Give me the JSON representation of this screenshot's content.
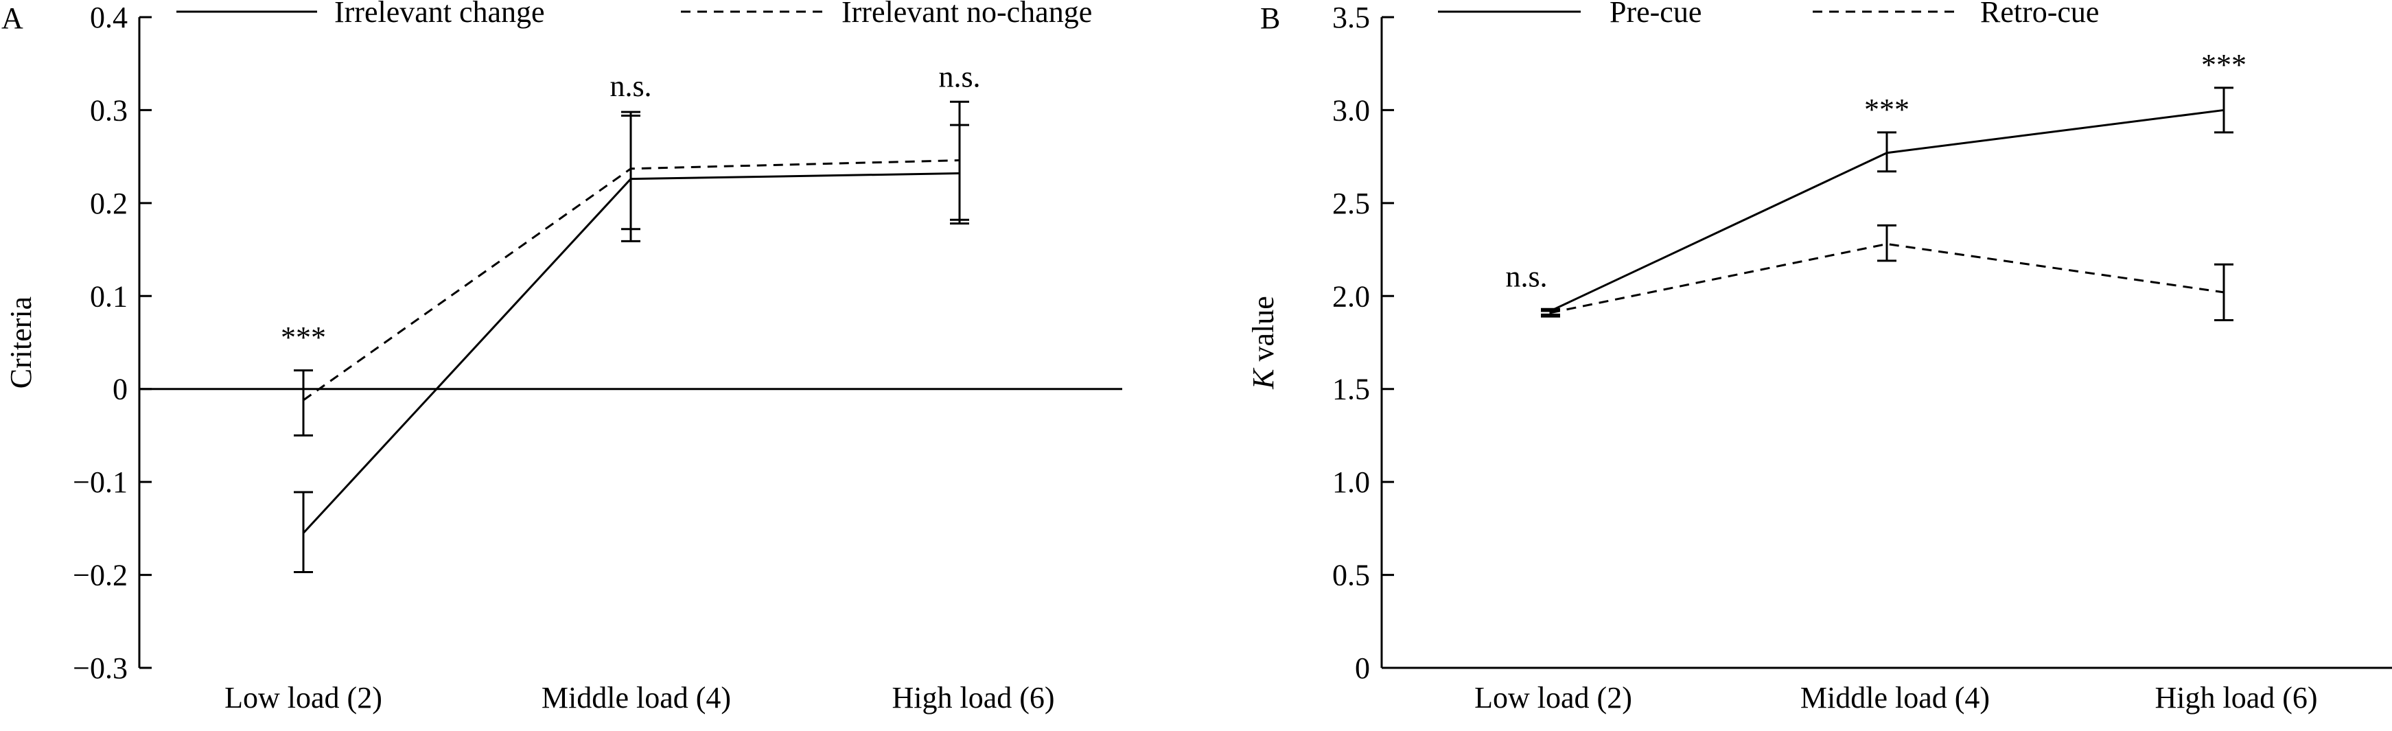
{
  "chart_data": [
    {
      "type": "line",
      "panel_label": "A",
      "title": "",
      "xlabel": "",
      "ylabel": "Criteria",
      "ylim": [
        -0.3,
        0.4
      ],
      "yticks": [
        0.4,
        0.3,
        0.2,
        0.1,
        0,
        -0.1,
        -0.2,
        -0.3
      ],
      "ytick_labels": [
        "0.4",
        "0.3",
        "0.2",
        "0.1",
        "0",
        "−0.1",
        "−0.2",
        "−0.3"
      ],
      "categories": [
        "Low load (2)",
        "Middle load (4)",
        "High load (6)"
      ],
      "zero_line": true,
      "grid": false,
      "legend_position": "top",
      "series": [
        {
          "name": "Irrelevant change",
          "style": "solid",
          "values": [
            -0.155,
            0.226,
            0.232
          ],
          "err_upper": [
            -0.111,
            0.294,
            0.284
          ],
          "err_lower": [
            -0.197,
            0.159,
            0.178
          ]
        },
        {
          "name": "Irrelevant no-change",
          "style": "dashed",
          "values": [
            -0.012,
            0.237,
            0.246
          ],
          "err_upper": [
            0.02,
            0.298,
            0.309
          ],
          "err_lower": [
            -0.05,
            0.172,
            0.182
          ]
        }
      ],
      "annotations": [
        {
          "category": 0,
          "text": "***",
          "y": 0.045
        },
        {
          "category": 1,
          "text": "n.s.",
          "y": 0.315
        },
        {
          "category": 2,
          "text": "n.s.",
          "y": 0.325
        }
      ]
    },
    {
      "type": "line",
      "panel_label": "B",
      "title": "",
      "xlabel": "",
      "ylabel_italic": "K",
      "ylabel_rest": " value",
      "ylim": [
        0,
        3.5
      ],
      "yticks": [
        3.5,
        3.0,
        2.5,
        2.0,
        1.5,
        1.0,
        0.5,
        0
      ],
      "ytick_labels": [
        "3.5",
        "3.0",
        "2.5",
        "2.0",
        "1.5",
        "1.0",
        "0.5",
        "0"
      ],
      "categories": [
        "Low load (2)",
        "Middle load (4)",
        "High load (6)"
      ],
      "zero_line": false,
      "grid": false,
      "legend_position": "top",
      "series": [
        {
          "name": "Pre-cue",
          "style": "solid",
          "values": [
            1.92,
            2.77,
            3.0
          ],
          "err_upper": [
            1.93,
            2.88,
            3.12
          ],
          "err_lower": [
            1.9,
            2.67,
            2.88
          ]
        },
        {
          "name": "Retro-cue",
          "style": "dashed",
          "values": [
            1.91,
            2.28,
            2.02
          ],
          "err_upper": [
            1.92,
            2.38,
            2.17
          ],
          "err_lower": [
            1.89,
            2.19,
            1.87
          ]
        }
      ],
      "annotations": [
        {
          "category": 0,
          "text": "n.s.",
          "y": 2.05,
          "dx": -0.35
        },
        {
          "category": 1,
          "text": "***",
          "y": 2.95
        },
        {
          "category": 2,
          "text": "***",
          "y": 3.19
        }
      ]
    }
  ]
}
